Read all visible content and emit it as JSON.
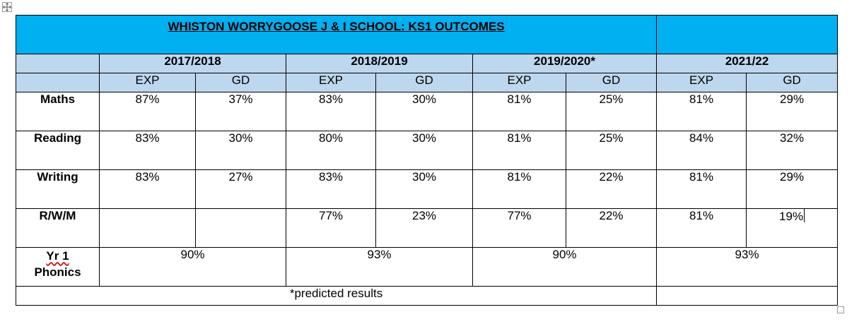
{
  "title": "WHISTON WORRYGOOSE J & I SCHOOL: KS1 OUTCOMES",
  "years": [
    "2017/2018",
    "2018/2019",
    "2019/2020*",
    "2021/22"
  ],
  "sub_headers": {
    "exp": "EXP",
    "gd": "GD"
  },
  "rows": [
    {
      "label": "Maths",
      "values": [
        "87%",
        "37%",
        "83%",
        "30%",
        "81%",
        "25%",
        "81%",
        "29%"
      ]
    },
    {
      "label": "Reading",
      "values": [
        "83%",
        "30%",
        "80%",
        "30%",
        "81%",
        "25%",
        "84%",
        "32%"
      ]
    },
    {
      "label": "Writing",
      "values": [
        "83%",
        "27%",
        "83%",
        "30%",
        "81%",
        "22%",
        "81%",
        "29%"
      ]
    },
    {
      "label": "R/W/M",
      "values": [
        "",
        "",
        "77%",
        "23%",
        "77%",
        "22%",
        "81%",
        "19%"
      ]
    }
  ],
  "phonics": {
    "label_line1": "Yr 1",
    "label_line2": "Phonics",
    "values": [
      "90%",
      "93%",
      "90%",
      "93%"
    ]
  },
  "footnote": "*predicted results"
}
